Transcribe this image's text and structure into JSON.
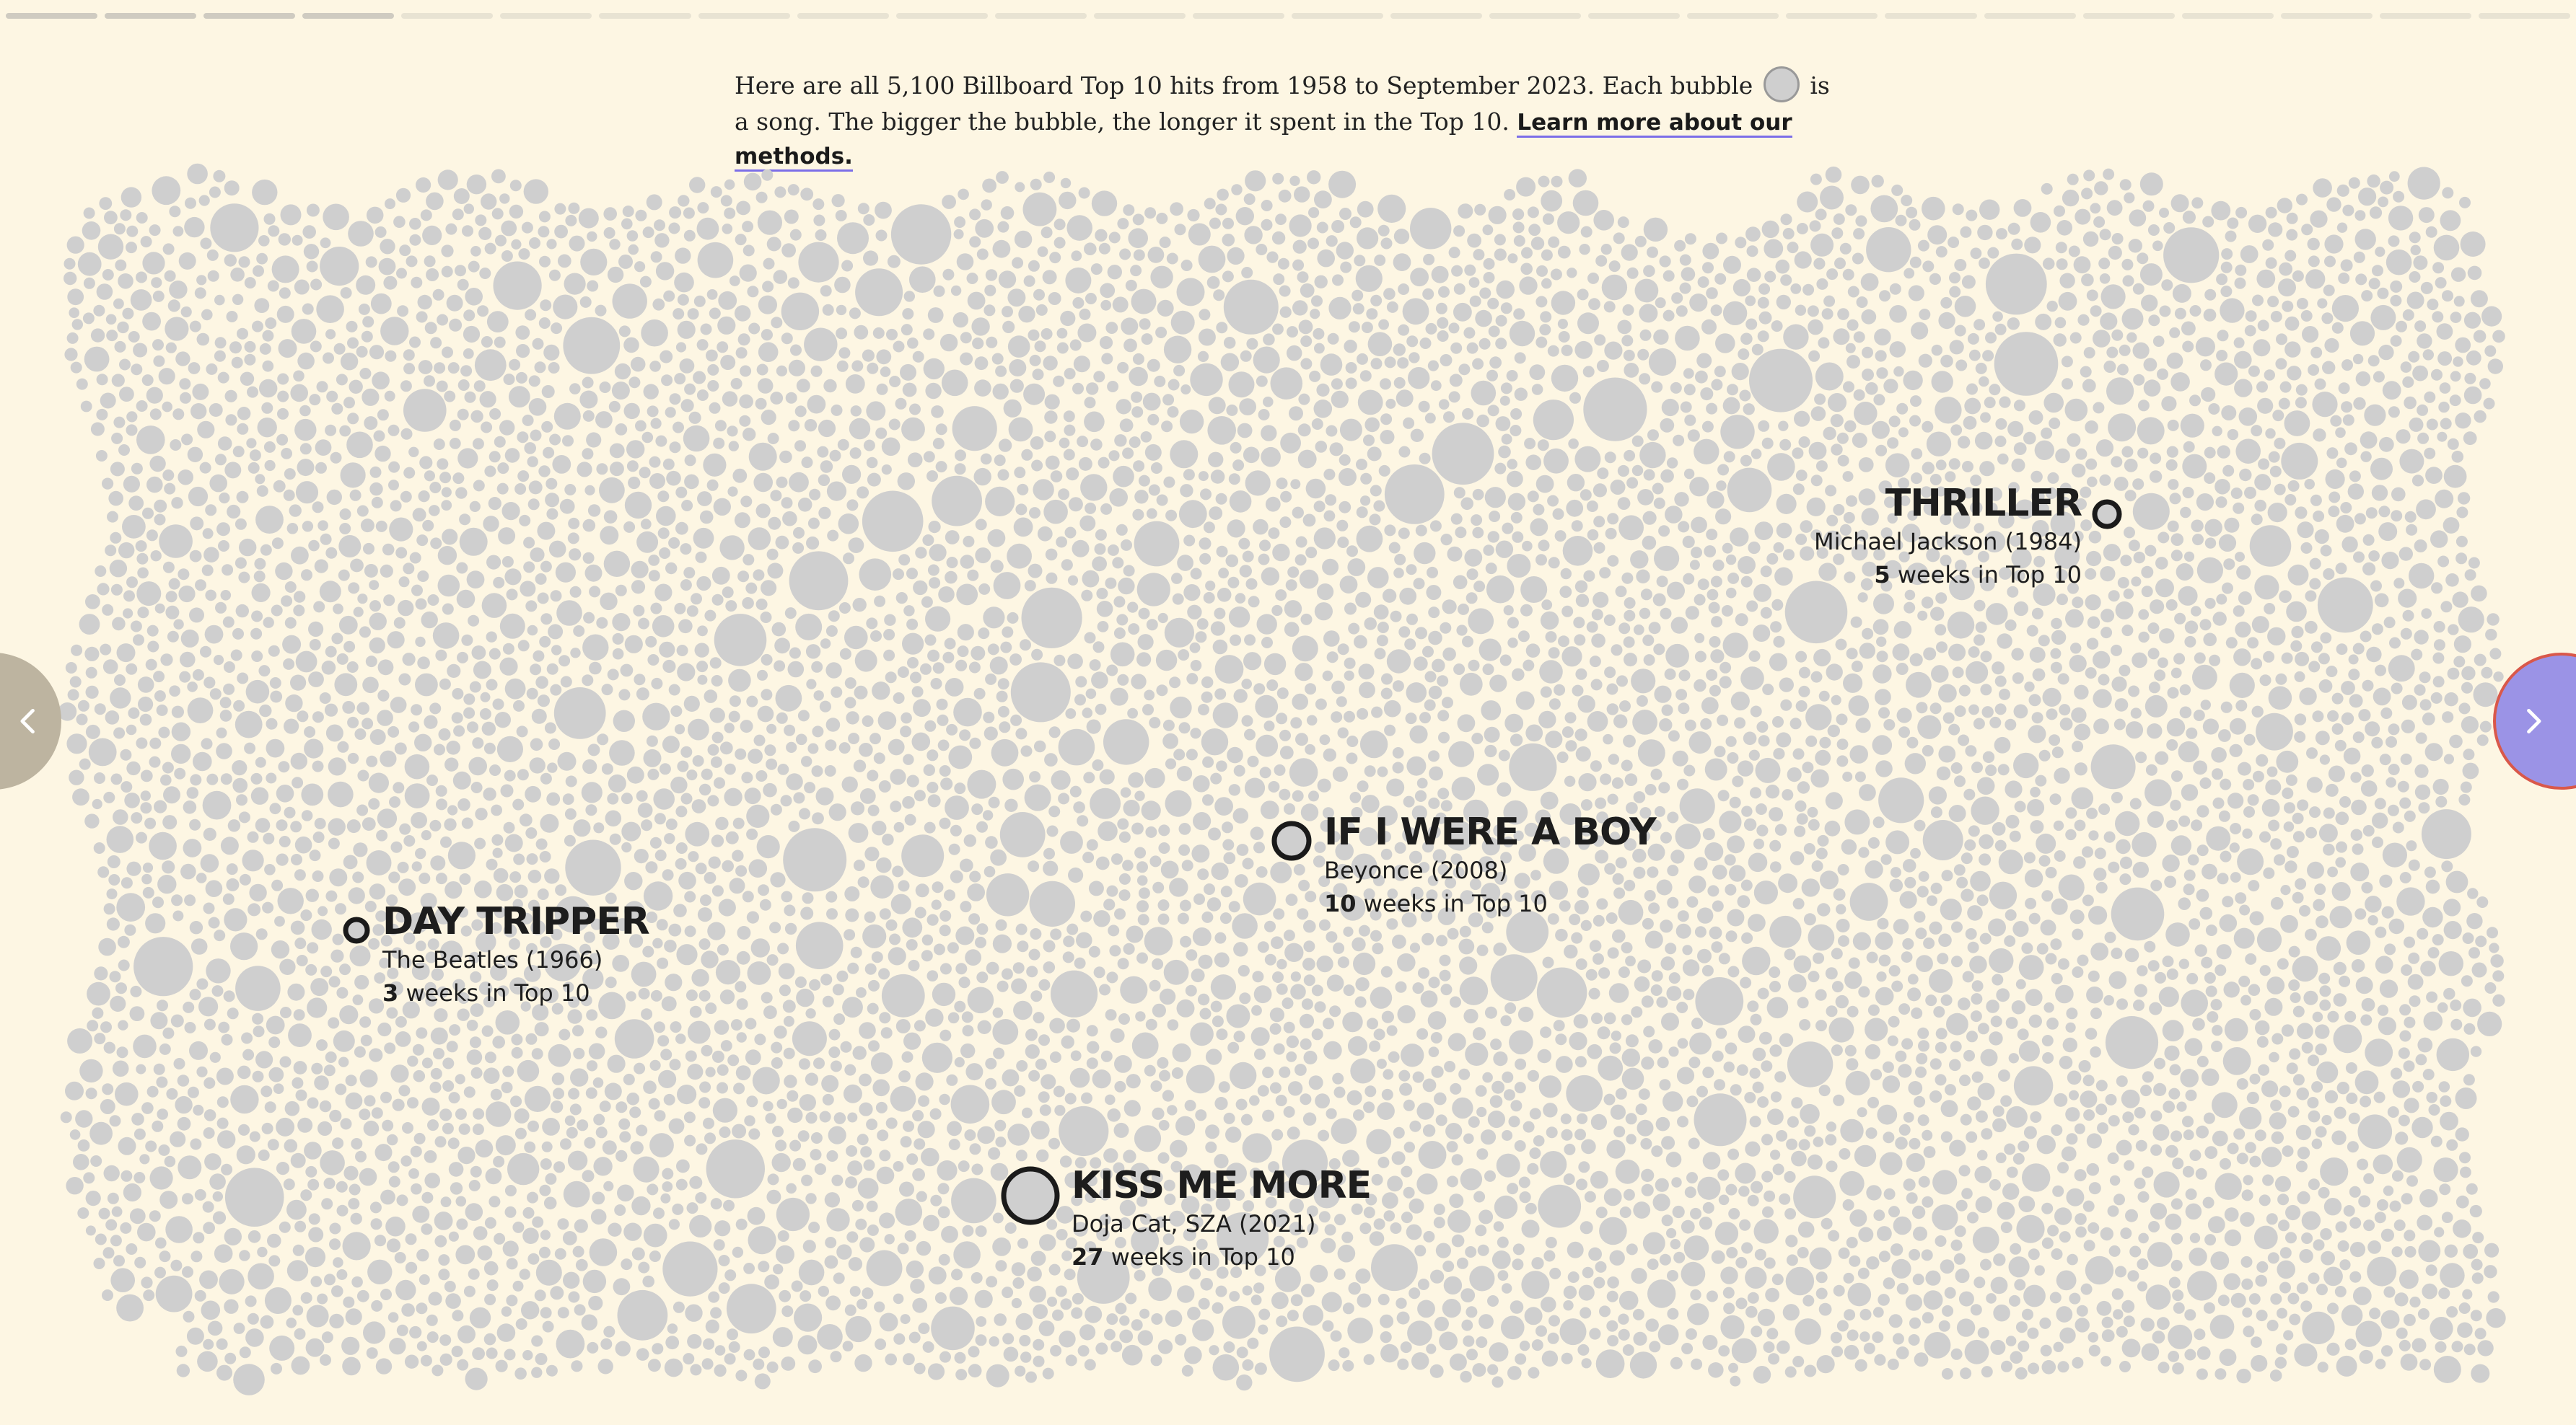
{
  "progress": {
    "total_steps": 26,
    "completed_steps": 4
  },
  "intro": {
    "text_before": "Here are all 5,100 Billboard Top 10 hits from 1958 to September 2023. Each bubble",
    "text_after": "is a song. The bigger the bubble, the longer it spent in the Top 10.",
    "link": "Learn more about our methods."
  },
  "colors": {
    "background": "#fdf6e3",
    "bubble": "#cfcfcf",
    "highlight_ring": "#1a1a1a",
    "next_button": "#9b93e6",
    "prev_button": "#bdb4a0"
  },
  "annotations": [
    {
      "id": "thriller",
      "title": "THRILLER",
      "artist_year": "Michael Jackson (1984)",
      "weeks": "5",
      "weeks_suffix": " weeks in Top 10"
    },
    {
      "id": "if-i-were-a-boy",
      "title": "IF I WERE A BOY",
      "artist_year": "Beyonce (2008)",
      "weeks": "10",
      "weeks_suffix": " weeks in Top 10"
    },
    {
      "id": "day-tripper",
      "title": "DAY TRIPPER",
      "artist_year": "The Beatles (1966)",
      "weeks": "3",
      "weeks_suffix": " weeks in Top 10"
    },
    {
      "id": "kiss-me-more",
      "title": "KISS ME MORE",
      "artist_year": "Doja Cat, SZA (2021)",
      "weeks": "27",
      "weeks_suffix": " weeks in Top 10"
    }
  ],
  "nav": {
    "prev_icon": "chevron-left-icon",
    "next_icon": "chevron-right-icon"
  }
}
